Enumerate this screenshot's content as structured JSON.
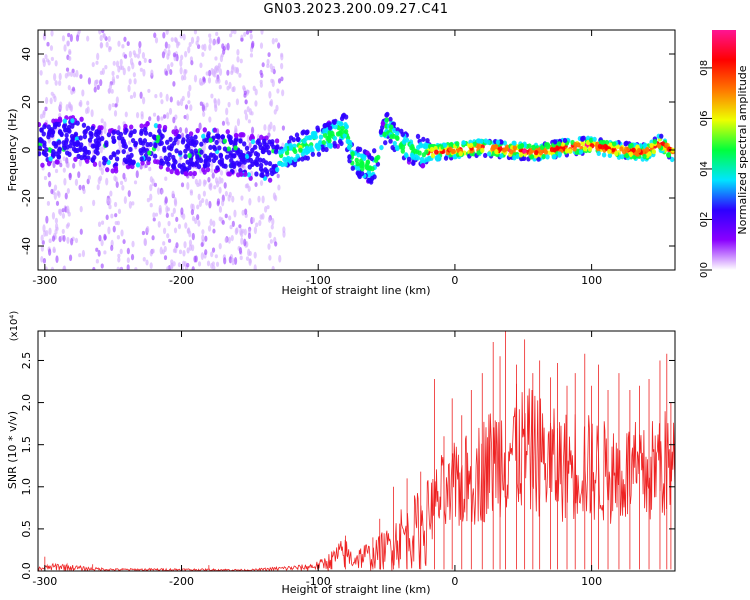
{
  "title": "GN03.2023.200.09.27.C41",
  "chart_data": [
    {
      "type": "heatmap",
      "xlabel": "Height of straight line (km)",
      "ylabel": "Frequency (Hz)",
      "xlim": [
        -305,
        161
      ],
      "ylim": [
        -50,
        50
      ],
      "x_ticks": [
        -300,
        -200,
        -100,
        0,
        100
      ],
      "y_ticks": [
        -40,
        -20,
        0,
        20,
        40
      ],
      "colorbar": {
        "label": "Normalized spectral amplitude",
        "range": [
          0,
          0.95
        ],
        "ticks": [
          0.0,
          0.2,
          0.4,
          0.6,
          0.8
        ],
        "tick_labels": [
          "0.0",
          "0.2",
          "0.4",
          "0.6",
          "0.8"
        ],
        "colormap": [
          "#ffffff",
          "#8a00ff",
          "#2d00ff",
          "#00e5ff",
          "#00ff3c",
          "#eeff00",
          "#ff7700",
          "#ff0000",
          "#ff1493"
        ]
      },
      "ridge": {
        "x": [
          -305,
          -280,
          -250,
          -220,
          -200,
          -180,
          -150,
          -130,
          -110,
          -90,
          -80,
          -75,
          -60,
          -50,
          -40,
          -30,
          -20,
          0,
          20,
          40,
          60,
          80,
          100,
          120,
          140,
          150,
          161
        ],
        "y": [
          2,
          5,
          0,
          3,
          -2,
          0,
          -3,
          -4,
          2,
          6,
          9,
          -4,
          -8,
          10,
          2,
          0,
          -1,
          0,
          1,
          0,
          -1,
          1,
          2,
          0,
          -1,
          3,
          -2
        ]
      },
      "grid": false,
      "legend": "none"
    },
    {
      "type": "line",
      "xlabel": "Height of straight line (km)",
      "ylabel": "SNR (10 * v/v)",
      "scale_label": "(x10⁴)",
      "xlim": [
        -305,
        161
      ],
      "ylim": [
        0,
        2.85
      ],
      "x_ticks": [
        -300,
        -200,
        -100,
        0,
        100
      ],
      "y_ticks": [
        0.0,
        0.5,
        1.0,
        1.5,
        2.0,
        2.5
      ],
      "y_tick_labels": [
        "0.0",
        "0.5",
        "1.0",
        "1.5",
        "2.0",
        "2.5"
      ],
      "color": "#ee2222",
      "envelope": {
        "x": [
          -305,
          -290,
          -270,
          -250,
          -200,
          -150,
          -130,
          -110,
          -100,
          -95,
          -90,
          -85,
          -80,
          -75,
          -70,
          -65,
          -60,
          -55,
          -50,
          -45,
          -40,
          -35,
          -30,
          -25,
          -20,
          -15,
          -10,
          -5,
          0,
          10,
          20,
          30,
          40,
          50,
          60,
          70,
          80,
          90,
          100,
          110,
          120,
          130,
          140,
          150,
          161
        ],
        "y": [
          0.05,
          0.1,
          0.05,
          0.03,
          0.03,
          0.02,
          0.05,
          0.08,
          0.12,
          0.18,
          0.25,
          0.35,
          0.4,
          0.25,
          0.3,
          0.35,
          0.3,
          0.45,
          0.5,
          0.6,
          0.8,
          0.75,
          0.9,
          1.0,
          1.1,
          1.2,
          1.4,
          1.3,
          1.55,
          1.65,
          1.85,
          2.05,
          2.25,
          2.2,
          2.15,
          1.95,
          1.9,
          2.0,
          1.85,
          1.8,
          1.75,
          1.8,
          1.7,
          2.0,
          1.8
        ]
      },
      "peaks": [
        {
          "x": -305,
          "y": 0.12
        },
        {
          "x": -300,
          "y": 0.17
        },
        {
          "x": -265,
          "y": 0.08
        },
        {
          "x": -180,
          "y": 0.07
        },
        {
          "x": -90,
          "y": 0.22
        },
        {
          "x": -80,
          "y": 0.42
        },
        {
          "x": -60,
          "y": 0.4
        },
        {
          "x": -55,
          "y": 0.62
        },
        {
          "x": -45,
          "y": 1.0
        },
        {
          "x": -35,
          "y": 1.1
        },
        {
          "x": -25,
          "y": 1.18
        },
        {
          "x": -15,
          "y": 2.28
        },
        {
          "x": -8,
          "y": 1.6
        },
        {
          "x": -2,
          "y": 2.05
        },
        {
          "x": 5,
          "y": 1.85
        },
        {
          "x": 12,
          "y": 2.15
        },
        {
          "x": 20,
          "y": 2.35
        },
        {
          "x": 28,
          "y": 2.72
        },
        {
          "x": 33,
          "y": 2.55
        },
        {
          "x": 37,
          "y": 2.85
        },
        {
          "x": 45,
          "y": 2.45
        },
        {
          "x": 51,
          "y": 2.75
        },
        {
          "x": 57,
          "y": 2.35
        },
        {
          "x": 62,
          "y": 2.5
        },
        {
          "x": 70,
          "y": 2.3
        },
        {
          "x": 75,
          "y": 2.47
        },
        {
          "x": 82,
          "y": 2.2
        },
        {
          "x": 88,
          "y": 2.35
        },
        {
          "x": 95,
          "y": 2.58
        },
        {
          "x": 100,
          "y": 2.2
        },
        {
          "x": 105,
          "y": 2.45
        },
        {
          "x": 112,
          "y": 2.15
        },
        {
          "x": 120,
          "y": 2.35
        },
        {
          "x": 128,
          "y": 2.15
        },
        {
          "x": 135,
          "y": 2.2
        },
        {
          "x": 142,
          "y": 2.28
        },
        {
          "x": 150,
          "y": 2.5
        },
        {
          "x": 155,
          "y": 2.58
        },
        {
          "x": 158,
          "y": 2.0
        },
        {
          "x": 161,
          "y": 1.95
        }
      ],
      "grid": false,
      "legend": "none"
    }
  ]
}
